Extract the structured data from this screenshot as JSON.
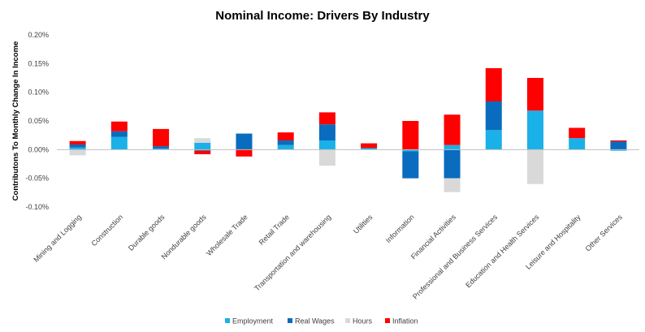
{
  "chart_data": {
    "type": "bar",
    "stacked": true,
    "title": "Nominal Income: Drivers By Industry",
    "ylabel": "Contributons To Monthly Change In Income",
    "xlabel": "",
    "ylim": [
      -0.1,
      0.2
    ],
    "yticks": [
      -0.1,
      -0.05,
      0.0,
      0.05,
      0.1,
      0.15,
      0.2
    ],
    "ytick_labels": [
      "-0.10%",
      "-0.05%",
      "0.00%",
      "0.05%",
      "0.10%",
      "0.15%",
      "0.20%"
    ],
    "grid": false,
    "legend_position": "bottom",
    "categories": [
      "Mining and Logging",
      "Construction",
      "Durable goods",
      "Nondurable goods",
      "Wholesale Trade",
      "Retail Trade",
      "Transportation and warehousing",
      "Utilities",
      "Information",
      "Financial Activities",
      "Professional and Business Services",
      "Education and Health Services",
      "Leisure and Hospitality",
      "Other Services"
    ],
    "series": [
      {
        "name": "Employment",
        "color": "#1ab0e8",
        "values": [
          0.004,
          0.022,
          0.002,
          0.012,
          0.0,
          0.008,
          0.016,
          0.002,
          -0.003,
          0.008,
          0.034,
          0.068,
          0.02,
          -0.002
        ]
      },
      {
        "name": "Real Wages",
        "color": "#0a6cbe",
        "values": [
          0.005,
          0.01,
          0.004,
          -0.002,
          0.028,
          0.008,
          0.028,
          0.001,
          -0.047,
          -0.05,
          0.05,
          0.0,
          0.0,
          0.014
        ]
      },
      {
        "name": "Hours",
        "color": "#d9d9d9",
        "values": [
          -0.01,
          0.0,
          0.0,
          0.008,
          0.0,
          0.0,
          -0.028,
          0.0,
          0.0,
          -0.024,
          0.0,
          -0.06,
          0.0,
          0.0
        ]
      },
      {
        "name": "Inflation",
        "color": "#ff0000",
        "values": [
          0.006,
          0.017,
          0.03,
          -0.006,
          -0.012,
          0.014,
          0.021,
          0.008,
          0.05,
          0.053,
          0.058,
          0.057,
          0.018,
          0.002
        ]
      }
    ]
  }
}
